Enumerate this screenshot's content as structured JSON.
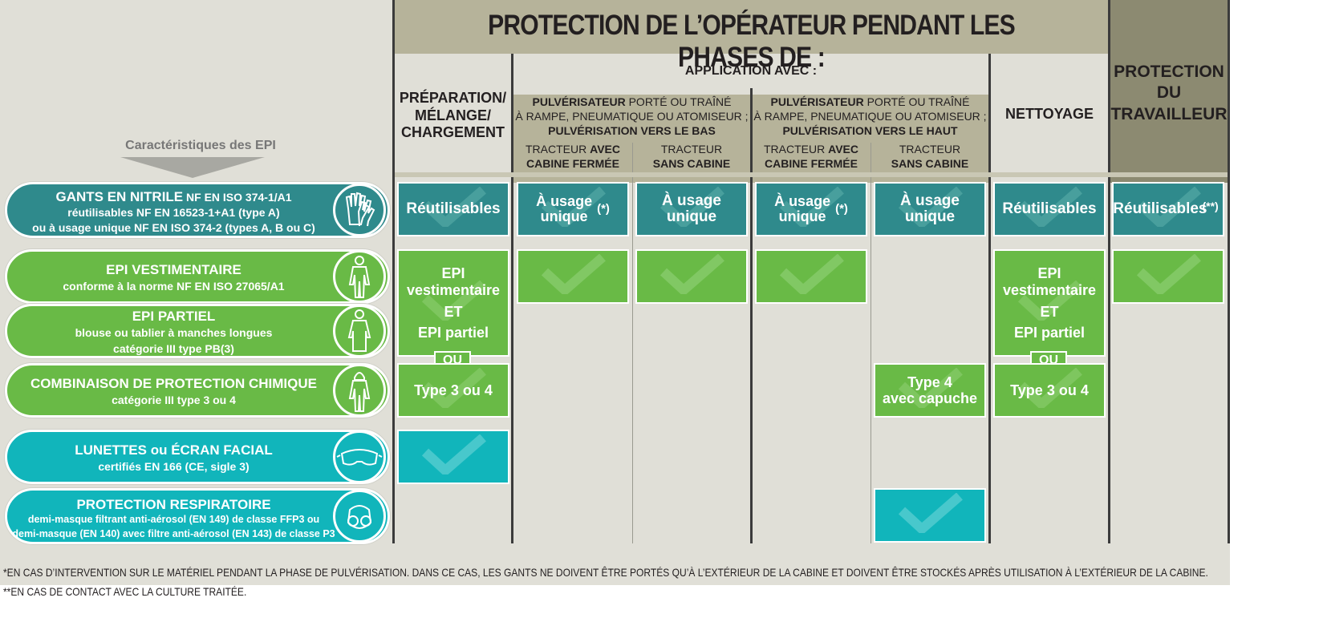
{
  "title": "PROTECTION DE L’OPÉRATEUR PENDANT LES PHASES DE :",
  "caracteristiques": "Caractéristiques des EPI",
  "col_prep": [
    "PRÉPARATION/",
    "MÉLANGE/",
    "CHARGEMENT"
  ],
  "application": "APPLICATION AVEC :",
  "pulv_bas": {
    "bold1": "PULVÉRISATEUR",
    "rest1": " PORTÉ OU TRAÎNÉ",
    "line2": "À RAMPE, PNEUMATIQUE OU ATOMISEUR ;",
    "line3": "PULVÉRISATION VERS LE BAS"
  },
  "pulv_haut": {
    "bold1": "PULVÉRISATEUR",
    "rest1": " PORTÉ OU TRAÎNÉ",
    "line2": "À RAMPE, PNEUMATIQUE OU ATOMISEUR ;",
    "line3": "PULVÉRISATION VERS LE HAUT"
  },
  "tracteur": "TRACTEUR",
  "avec": "AVEC",
  "cabine_fermee": "CABINE FERMÉE",
  "sans_cabine": "SANS CABINE",
  "nettoyage": "NETTOYAGE",
  "protection_travailleur": [
    "PROTECTION",
    "DU",
    "TRAVAILLEUR"
  ],
  "epi": [
    {
      "title": "GANTS EN NITRILE",
      "title_suffix": " NF EN ISO 374-1/A1",
      "l2": "réutilisables NF EN 16523-1+A1 (type A)",
      "l3": "ou à usage unique NF EN ISO 374-2 (types A, B ou C)",
      "icon": "gloves-icon",
      "color": "#2f8a8c"
    },
    {
      "title": "EPI VESTIMENTAIRE",
      "title_suffix": "",
      "l2": "conforme à la norme NF EN ISO 27065/A1",
      "l3": "",
      "icon": "overall-icon",
      "color": "#69ba46"
    },
    {
      "title": "EPI PARTIEL",
      "title_suffix": "",
      "l2": "blouse ou tablier à manches longues",
      "l3": "catégorie III type PB(3)",
      "icon": "apron-icon",
      "color": "#69ba46"
    },
    {
      "title": "COMBINAISON DE PROTECTION CHIMIQUE",
      "title_suffix": "",
      "l2": "catégorie III type 3 ou 4",
      "l3": "",
      "icon": "hooded-suit-icon",
      "color": "#69ba46"
    },
    {
      "title": "LUNETTES ou ÉCRAN FACIAL",
      "title_suffix": "",
      "l2": "certifiés EN 166 (CE, sigle 3)",
      "l3": "",
      "icon": "goggles-icon",
      "color": "#11b5bb"
    },
    {
      "title": "PROTECTION RESPIRATOIRE",
      "title_suffix": "",
      "l2": "demi-masque filtrant anti-aérosol (EN 149) de classe FFP3 ou",
      "l3": "demi-masque (EN 140) avec filtre anti-aérosol (EN 143) de classe P3",
      "icon": "respirator-icon",
      "color": "#11b5bb"
    }
  ],
  "cells": {
    "reutilisables": "Réutilisables",
    "usage_unique": "À usage unique",
    "usage": "À usage",
    "unique": "unique",
    "star": "(*)",
    "double_star": "(**)",
    "epi_vest_1": "EPI",
    "epi_vest_2": "vestimentaire",
    "et": "ET",
    "epi_partiel": "EPI partiel",
    "ou": "OU",
    "type34": "Type 3 ou 4",
    "type4": "Type 4",
    "avec_capuche": "avec capuche"
  },
  "footnote1": "*EN CAS D’INTERVENTION SUR LE MATÉRIEL PENDANT LA PHASE DE PULVÉRISATION. DANS CE CAS, LES GANTS NE DOIVENT ÊTRE PORTÉS QU’À L’EXTÉRIEUR DE LA CABINE ET DOIVENT ÊTRE STOCKÉS APRÈS UTILISATION À L’EXTÉRIEUR DE LA CABINE.",
  "footnote2": "**EN CAS DE CONTACT AVEC LA CULTURE TRAITÉE.",
  "colors": {
    "teal": "#2f8a8c",
    "green": "#69ba46",
    "cyan": "#11b5bb",
    "header": "#b6b39a",
    "header_dark": "#8c8a71",
    "bg": "#e0dfd7"
  }
}
